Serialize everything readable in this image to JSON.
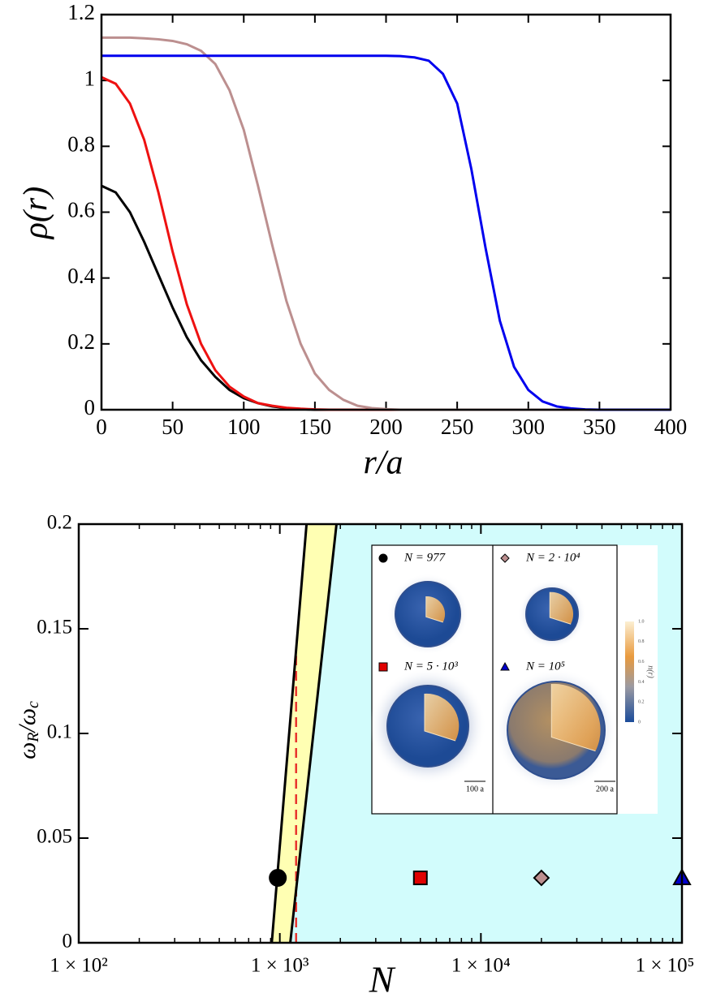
{
  "chart_data": [
    {
      "type": "line",
      "xlabel": "r/a",
      "ylabel": "ρ(r)",
      "x": [
        0,
        10,
        20,
        30,
        40,
        50,
        60,
        70,
        80,
        90,
        100,
        110,
        120,
        130,
        140,
        150,
        160,
        170,
        180,
        190,
        200,
        210,
        220,
        230,
        240,
        250,
        260,
        270,
        280,
        290,
        300,
        310,
        320,
        330,
        340,
        350,
        360,
        370,
        380,
        390,
        400
      ],
      "series": [
        {
          "color": "#000000",
          "values": [
            0.68,
            0.66,
            0.6,
            0.51,
            0.41,
            0.31,
            0.22,
            0.15,
            0.1,
            0.06,
            0.035,
            0.02,
            0.01,
            0.005,
            0.002,
            0,
            0,
            0,
            0,
            0,
            0,
            0,
            0,
            0,
            0,
            0,
            0,
            0,
            0,
            0,
            0,
            0,
            0,
            0,
            0,
            0,
            0,
            0,
            0,
            0,
            0
          ]
        },
        {
          "color": "#ee1111",
          "values": [
            1.01,
            0.99,
            0.93,
            0.82,
            0.66,
            0.48,
            0.32,
            0.2,
            0.12,
            0.07,
            0.04,
            0.02,
            0.012,
            0.006,
            0.003,
            0.001,
            0,
            0,
            0,
            0,
            0,
            0,
            0,
            0,
            0,
            0,
            0,
            0,
            0,
            0,
            0,
            0,
            0,
            0,
            0,
            0,
            0,
            0,
            0,
            0,
            0
          ]
        },
        {
          "color": "#bc8f8f",
          "values": [
            1.13,
            1.13,
            1.13,
            1.128,
            1.125,
            1.12,
            1.11,
            1.09,
            1.05,
            0.97,
            0.85,
            0.68,
            0.5,
            0.33,
            0.2,
            0.11,
            0.06,
            0.03,
            0.012,
            0.005,
            0.002,
            0,
            0,
            0,
            0,
            0,
            0,
            0,
            0,
            0,
            0,
            0,
            0,
            0,
            0,
            0,
            0,
            0,
            0,
            0,
            0
          ]
        },
        {
          "color": "#0000ee",
          "values": [
            1.075,
            1.075,
            1.075,
            1.075,
            1.075,
            1.075,
            1.075,
            1.075,
            1.075,
            1.075,
            1.075,
            1.075,
            1.075,
            1.075,
            1.075,
            1.075,
            1.075,
            1.075,
            1.075,
            1.075,
            1.075,
            1.074,
            1.07,
            1.06,
            1.02,
            0.93,
            0.73,
            0.49,
            0.27,
            0.13,
            0.06,
            0.025,
            0.01,
            0.004,
            0.001,
            0,
            0,
            0,
            0,
            0,
            0
          ]
        }
      ],
      "xlim": [
        0,
        400
      ],
      "xticks": [
        0,
        50,
        100,
        150,
        200,
        250,
        300,
        350,
        400
      ],
      "ylim": [
        0,
        1.2
      ],
      "yticks": [
        0,
        0.2,
        0.4,
        0.6,
        0.8,
        1,
        1.2
      ]
    },
    {
      "type": "scatter",
      "xlabel": "N",
      "ylabel": [
        "ω",
        "R",
        "/ω",
        "c"
      ],
      "xscale": "log",
      "xlim": [
        100,
        100000
      ],
      "xticks": [
        {
          "value": 100,
          "label": "1 × 10²"
        },
        {
          "value": 1000,
          "label": "1 × 10³"
        },
        {
          "value": 10000,
          "label": "1 × 10⁴"
        },
        {
          "value": 100000,
          "label": "1 × 10⁵"
        }
      ],
      "xminorticks": [
        200,
        300,
        400,
        500,
        600,
        700,
        800,
        900,
        2000,
        3000,
        4000,
        5000,
        6000,
        7000,
        8000,
        9000,
        20000,
        30000,
        40000,
        50000,
        60000,
        70000,
        80000,
        90000
      ],
      "ylim": [
        0,
        0.2
      ],
      "yticks": [
        0,
        0.05,
        0.1,
        0.15,
        0.2
      ],
      "band": {
        "color": "#ffffb3",
        "left_x": [
          912,
          1358
        ],
        "right_x": [
          1127,
          1914
        ],
        "y": [
          0,
          0.2
        ]
      },
      "outer_color": "#d2fcfc",
      "dashed": {
        "color": "#e8332e",
        "x": [
          1205,
          1205
        ],
        "y": [
          0,
          0.137
        ]
      },
      "series": [
        {
          "name": "N = 977",
          "color": "#000000",
          "marker": "circle",
          "x": [
            977
          ],
          "values": [
            0.031
          ]
        },
        {
          "name": "N = 5 · 10³",
          "color": "#e00000",
          "marker": "square",
          "x": [
            5000
          ],
          "values": [
            0.031
          ]
        },
        {
          "name": "N = 2 · 10⁴",
          "color": "#bc8f8f",
          "marker": "diamond",
          "x": [
            20000
          ],
          "values": [
            0.031
          ]
        },
        {
          "name": "N = 10⁵",
          "color": "#0000cc",
          "marker": "triangle",
          "x": [
            100000
          ],
          "values": [
            0.031
          ]
        }
      ],
      "inset": {
        "scale_bars": [
          "100 a",
          "200 a"
        ],
        "colorbar_label": "n(r)",
        "colorbar_ticks": [
          0,
          0.2,
          0.4,
          0.6,
          0.8,
          {
            "value": 1,
            "label": "1.0"
          }
        ]
      }
    }
  ]
}
